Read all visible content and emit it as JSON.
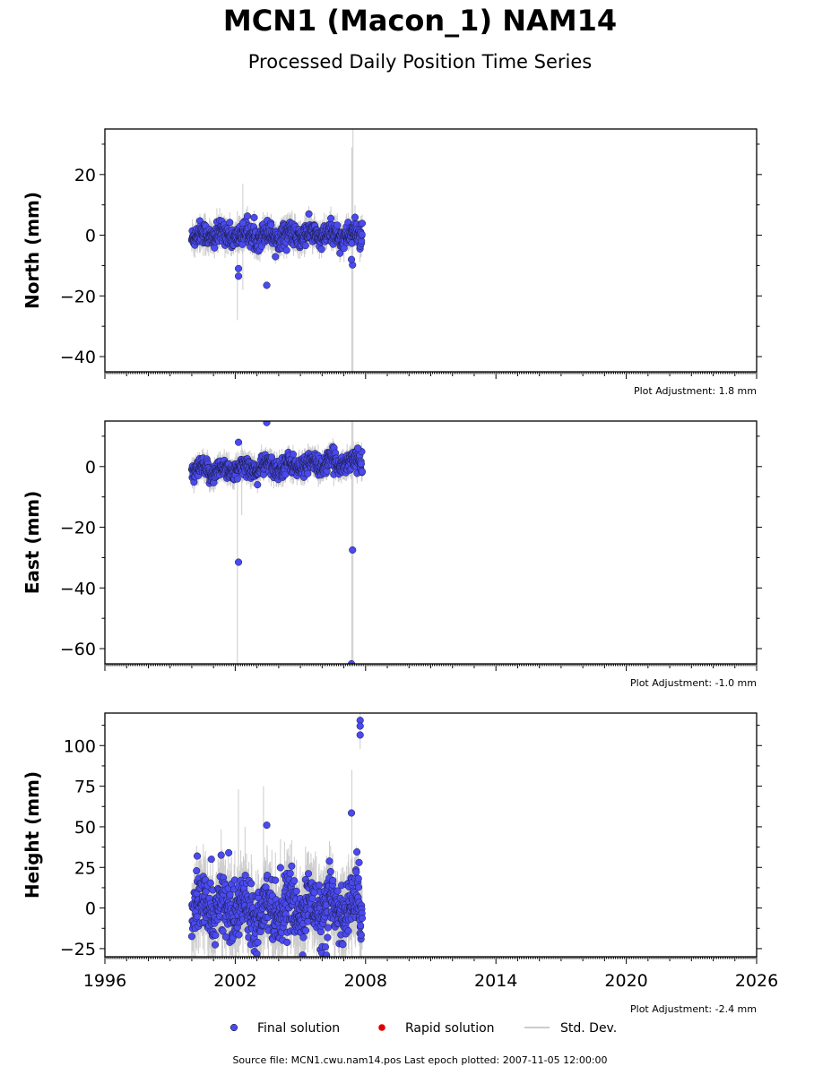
{
  "header": {
    "title": "MCN1 (Macon_1) NAM14",
    "subtitle": "Processed Daily Position Time Series"
  },
  "footer": {
    "source": "Source file: MCN1.cwu.nam14.pos  Last epoch plotted: 2007-11-05 12:00:00"
  },
  "legend": {
    "final_label": "Final solution",
    "rapid_label": "Rapid solution",
    "std_label": "Std. Dev.",
    "final_color": "#4a4af0",
    "rapid_color": "#e00000",
    "std_color": "#bbbbbb"
  },
  "chart_data": [
    {
      "type": "scatter",
      "component": "north",
      "ylabel": "North (mm)",
      "xlim": [
        1996,
        2026
      ],
      "ylim": [
        -45,
        35
      ],
      "yticks": [
        -40,
        -20,
        0,
        20
      ],
      "adjustment": "Plot Adjustment: 1.8 mm",
      "noise_sd": 1.8,
      "outliers": [
        {
          "x": 2002.15,
          "y": -11.0
        },
        {
          "x": 2002.15,
          "y": -13.5
        },
        {
          "x": 2002.35,
          "y": 4.0
        },
        {
          "x": 2003.45,
          "y": -16.5
        },
        {
          "x": 2007.4,
          "y": -9.8
        },
        {
          "x": 2007.35,
          "y": -8.0
        }
      ],
      "big_errors": [
        {
          "x": 2002.1,
          "lo": -28,
          "hi": 8
        },
        {
          "x": 2002.35,
          "lo": -18,
          "hi": 17
        },
        {
          "x": 2007.37,
          "lo": -45,
          "hi": 29
        },
        {
          "x": 2007.42,
          "lo": -45,
          "hi": 35
        }
      ]
    },
    {
      "type": "scatter",
      "component": "east",
      "ylabel": "East (mm)",
      "xlim": [
        1996,
        2026
      ],
      "ylim": [
        -65,
        15
      ],
      "yticks": [
        -60,
        -40,
        -20,
        0
      ],
      "adjustment": "Plot Adjustment: -1.0 mm",
      "noise_sd": 1.6,
      "outliers": [
        {
          "x": 2002.15,
          "y": 8.0
        },
        {
          "x": 2002.15,
          "y": -31.5
        },
        {
          "x": 2003.45,
          "y": 14.5
        },
        {
          "x": 2007.4,
          "y": -27.5
        },
        {
          "x": 2007.35,
          "y": -65.0
        },
        {
          "x": 2007.65,
          "y": 6.0
        }
      ],
      "big_errors": [
        {
          "x": 2002.1,
          "lo": -65,
          "hi": 5
        },
        {
          "x": 2002.3,
          "lo": -16,
          "hi": 8
        },
        {
          "x": 2007.37,
          "lo": -65,
          "hi": 15
        },
        {
          "x": 2007.42,
          "lo": -65,
          "hi": 15
        }
      ]
    },
    {
      "type": "scatter",
      "component": "height",
      "ylabel": "Height (mm)",
      "xlim": [
        1996,
        2026
      ],
      "ylim": [
        -30,
        120
      ],
      "yticks": [
        -25,
        0,
        25,
        50,
        75,
        100
      ],
      "xticks": [
        1996,
        2002,
        2008,
        2014,
        2020,
        2026
      ],
      "adjustment": "Plot Adjustment: -2.4 mm",
      "noise_sd": 8.5,
      "outliers": [
        {
          "x": 2000.25,
          "y": 32.0
        },
        {
          "x": 2000.9,
          "y": 30.0
        },
        {
          "x": 2001.7,
          "y": 34.0
        },
        {
          "x": 2003.45,
          "y": 51.0
        },
        {
          "x": 2007.35,
          "y": 58.5
        },
        {
          "x": 2007.6,
          "y": 34.5
        },
        {
          "x": 2007.7,
          "y": 28.0
        },
        {
          "x": 2007.75,
          "y": 115.5
        },
        {
          "x": 2007.75,
          "y": 112.0
        },
        {
          "x": 2007.75,
          "y": 106.5
        },
        {
          "x": 2006.2,
          "y": -29.0
        },
        {
          "x": 2006.15,
          "y": -24.0
        }
      ],
      "big_errors": [
        {
          "x": 2002.15,
          "lo": -20,
          "hi": 73
        },
        {
          "x": 2002.45,
          "lo": -10,
          "hi": 50
        },
        {
          "x": 2003.3,
          "lo": -10,
          "hi": 75
        },
        {
          "x": 2007.37,
          "lo": -30,
          "hi": 85
        },
        {
          "x": 2007.75,
          "lo": 98,
          "hi": 120
        }
      ]
    }
  ],
  "series_time": {
    "start": 2000.0,
    "end": 2007.85,
    "step": 0.011
  }
}
